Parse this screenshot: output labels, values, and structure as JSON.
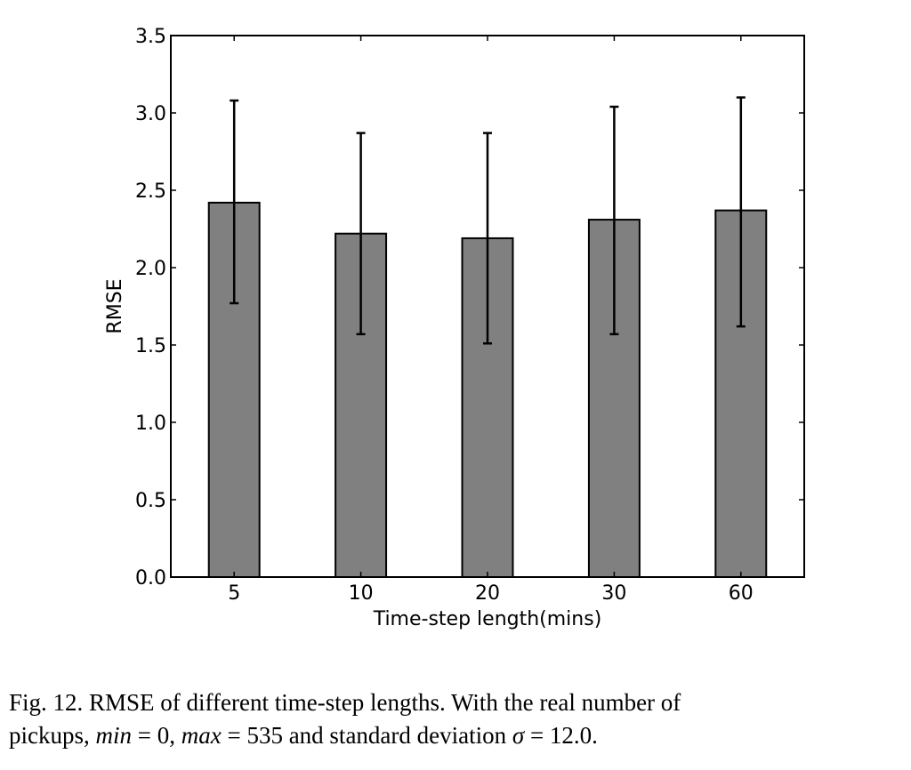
{
  "chart_data": {
    "type": "bar",
    "categories": [
      "5",
      "10",
      "20",
      "30",
      "60"
    ],
    "values": [
      2.42,
      2.22,
      2.19,
      2.31,
      2.37
    ],
    "error_low": [
      1.77,
      1.57,
      1.51,
      1.57,
      1.62
    ],
    "error_high": [
      3.08,
      2.87,
      2.87,
      3.04,
      3.1
    ],
    "xlabel": "Time-step length(mins)",
    "ylabel": "RMSE",
    "ylim": [
      0,
      3.5
    ],
    "yticks": [
      "0.0",
      "0.5",
      "1.0",
      "1.5",
      "2.0",
      "2.5",
      "3.0",
      "3.5"
    ],
    "bar_color": "#808080",
    "grid": false
  },
  "caption": {
    "line1": "Fig. 12.  RMSE of different time-step lengths. With the real number of",
    "line2_prefix": "pickups, ",
    "min_expr": "min",
    "min_eq": " = 0, ",
    "max_expr": "max",
    "max_eq": " = 535 and standard deviation ",
    "sigma": "σ",
    "sigma_eq": " = 12.0."
  }
}
